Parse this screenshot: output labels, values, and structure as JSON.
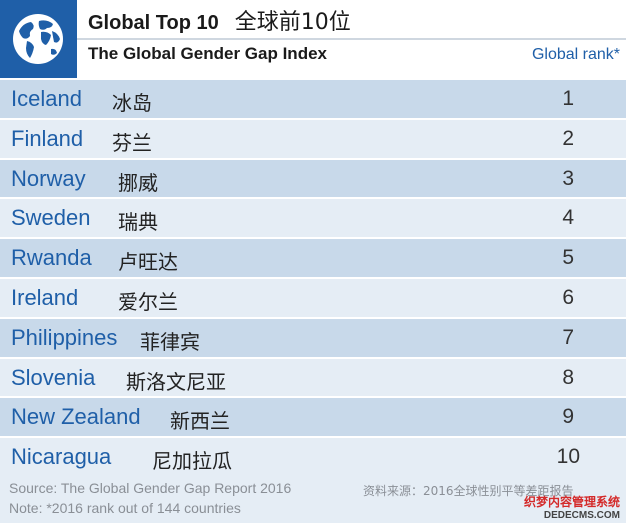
{
  "header": {
    "title_en": "Global Top 10",
    "title_cn": "全球前10位",
    "subtitle": "The Global Gender Gap Index",
    "rank_column": "Global rank*",
    "logo_icon": "globe-icon",
    "logo_color": "#1f5fa8"
  },
  "rows": [
    {
      "en": "Iceland",
      "cn": "冰岛",
      "rank": "1"
    },
    {
      "en": "Finland",
      "cn": "芬兰",
      "rank": "2"
    },
    {
      "en": "Norway",
      "cn": "挪威",
      "rank": "3"
    },
    {
      "en": "Sweden",
      "cn": "瑞典",
      "rank": "4"
    },
    {
      "en": "Rwanda",
      "cn": "卢旺达",
      "rank": "5"
    },
    {
      "en": "Ireland",
      "cn": "爱尔兰",
      "rank": "6"
    },
    {
      "en": "Philippines",
      "cn": "菲律宾",
      "rank": "7"
    },
    {
      "en": "Slovenia",
      "cn": "斯洛文尼亚",
      "rank": "8"
    },
    {
      "en": "New Zealand",
      "cn": "新西兰",
      "rank": "9"
    },
    {
      "en": "Nicaragua",
      "cn": "尼加拉瓜",
      "rank": "10"
    }
  ],
  "footer": {
    "source_en": "Source: The Global Gender Gap Report 2016",
    "source_cn": "资料来源：2016全球性别平等差距报告",
    "note": "Note: *2016 rank out of 144 countries"
  },
  "watermark": {
    "cn": "织梦内容管理系统",
    "en": "DEDECMS.COM"
  }
}
